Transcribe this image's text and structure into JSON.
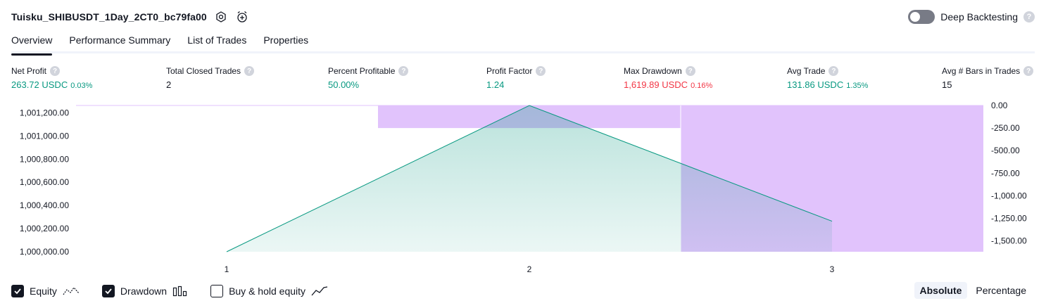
{
  "header": {
    "title": "Tuisku_SHIBUSDT_1Day_2CT0_bc79fa00",
    "deep_backtesting_label": "Deep Backtesting",
    "help_glyph": "?"
  },
  "tabs": [
    {
      "label": "Overview"
    },
    {
      "label": "Performance Summary"
    },
    {
      "label": "List of Trades"
    },
    {
      "label": "Properties"
    }
  ],
  "metrics": [
    {
      "label": "Net Profit",
      "value": "263.72 USDC",
      "pct": "0.03%",
      "color": "green"
    },
    {
      "label": "Total Closed Trades",
      "value": "2",
      "pct": "",
      "color": "neutral"
    },
    {
      "label": "Percent Profitable",
      "value": "50.00%",
      "pct": "",
      "color": "green"
    },
    {
      "label": "Profit Factor",
      "value": "1.24",
      "pct": "",
      "color": "green"
    },
    {
      "label": "Max Drawdown",
      "value": "1,619.89 USDC",
      "pct": "0.16%",
      "color": "red"
    },
    {
      "label": "Avg Trade",
      "value": "131.86 USDC",
      "pct": "1.35%",
      "color": "green"
    },
    {
      "label": "Avg # Bars in Trades",
      "value": "15",
      "pct": "",
      "color": "neutral"
    }
  ],
  "chart_data": {
    "type": "area",
    "x": [
      1,
      2,
      3
    ],
    "x_tick_labels": [
      "1",
      "2",
      "3"
    ],
    "series": [
      {
        "name": "Equity",
        "type": "area",
        "axis": "left",
        "values": [
          1000000.0,
          1001263.72,
          1000263.72
        ],
        "color": "#089981"
      },
      {
        "name": "Drawdown",
        "type": "bar",
        "axis": "right",
        "bars": [
          {
            "x_start": 1.5,
            "x_end": 2.5,
            "value": -250.0
          },
          {
            "x_start": 2.5,
            "x_end": 3.5,
            "value": -1619.89
          }
        ],
        "color": "#e1c3fc"
      }
    ],
    "left_axis": {
      "ticks": [
        "1,001,200.00",
        "1,001,000.00",
        "1,000,800.00",
        "1,000,600.00",
        "1,000,400.00",
        "1,000,200.00",
        "1,000,000.00"
      ],
      "range": [
        1000000,
        1001263.72
      ]
    },
    "right_axis": {
      "ticks": [
        "0.00",
        "-250.00",
        "-500.00",
        "-750.00",
        "-1,000.00",
        "-1,250.00",
        "-1,500.00"
      ],
      "range": [
        -1619.89,
        0
      ]
    },
    "grid": false
  },
  "legend": [
    {
      "label": "Equity",
      "checked": true,
      "icon": "equity-line-icon"
    },
    {
      "label": "Drawdown",
      "checked": true,
      "icon": "drawdown-bars-icon"
    },
    {
      "label": "Buy & hold equity",
      "checked": false,
      "icon": "buy-hold-line-icon"
    }
  ],
  "modes": [
    {
      "label": "Absolute",
      "active": true
    },
    {
      "label": "Percentage",
      "active": false
    }
  ]
}
